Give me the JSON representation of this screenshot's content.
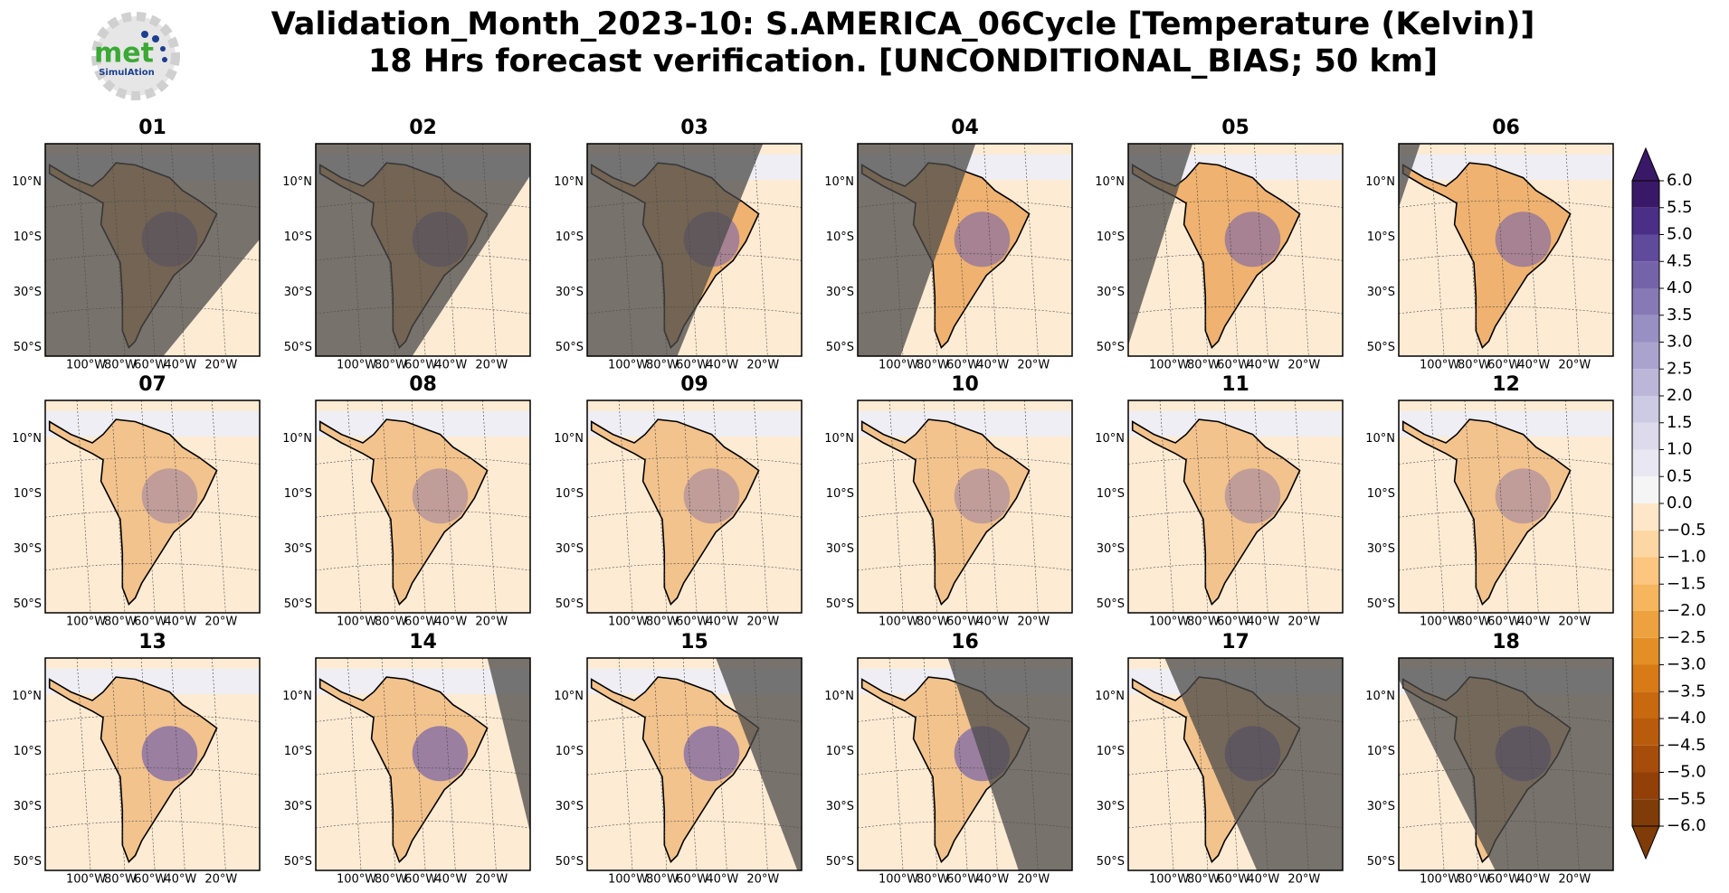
{
  "header": {
    "title_lines": [
      "Validation_Month_2023-10: S.AMERICA_06Cycle [Temperature (Kelvin)]",
      "18 Hrs forecast verification. [UNCONDITIONAL_BIAS; 50 km]"
    ]
  },
  "logo": {
    "text": "met",
    "subtext": "SimulAtion"
  },
  "panels": [
    "01",
    "02",
    "03",
    "04",
    "05",
    "06",
    "07",
    "08",
    "09",
    "10",
    "11",
    "12",
    "13",
    "14",
    "15",
    "16",
    "17",
    "18"
  ],
  "map": {
    "lat_labels": [
      "10°N",
      "10°S",
      "30°S",
      "50°S"
    ],
    "lon_labels": [
      "100°W",
      "80°W",
      "60°W",
      "40°W",
      "20°W"
    ]
  },
  "colorbar": {
    "ticks": [
      {
        "value": -6,
        "label": "−6.0"
      },
      {
        "value": -5.5,
        "label": "−5.5"
      },
      {
        "value": -5,
        "label": "−5.0"
      },
      {
        "value": -4.5,
        "label": "−4.5"
      },
      {
        "value": -4,
        "label": "−4.0"
      },
      {
        "value": -3.5,
        "label": "−3.5"
      },
      {
        "value": -3,
        "label": "−3.0"
      },
      {
        "value": -2.5,
        "label": "−2.5"
      },
      {
        "value": -2,
        "label": "−2.0"
      },
      {
        "value": -1.5,
        "label": "−1.5"
      },
      {
        "value": -1,
        "label": "−1.0"
      },
      {
        "value": -0.5,
        "label": "−0.5"
      },
      {
        "value": 0,
        "label": "0.0"
      },
      {
        "value": 0.5,
        "label": "0.5"
      },
      {
        "value": 1,
        "label": "1.0"
      },
      {
        "value": 1.5,
        "label": "1.5"
      },
      {
        "value": 2,
        "label": "2.0"
      },
      {
        "value": 2.5,
        "label": "2.5"
      },
      {
        "value": 3,
        "label": "3.0"
      },
      {
        "value": 3.5,
        "label": "3.5"
      },
      {
        "value": 4,
        "label": "4.0"
      },
      {
        "value": 4.5,
        "label": "4.5"
      },
      {
        "value": 5,
        "label": "5.0"
      },
      {
        "value": 5.5,
        "label": "5.5"
      },
      {
        "value": 6,
        "label": "6.0"
      }
    ],
    "colors": [
      "#7f3b08",
      "#923f08",
      "#a64d0b",
      "#b85b0c",
      "#c8680f",
      "#d87a16",
      "#e48e26",
      "#eea23f",
      "#f6b65e",
      "#fcc680",
      "#fdd7a3",
      "#fee7c8",
      "#f5f5f5",
      "#e9e8f2",
      "#dcdaeb",
      "#cdcae3",
      "#bcb7d9",
      "#aaa3ce",
      "#9890c3",
      "#8679b6",
      "#7463a9",
      "#5f4a9b",
      "#4b2e86",
      "#3a1868"
    ]
  }
}
